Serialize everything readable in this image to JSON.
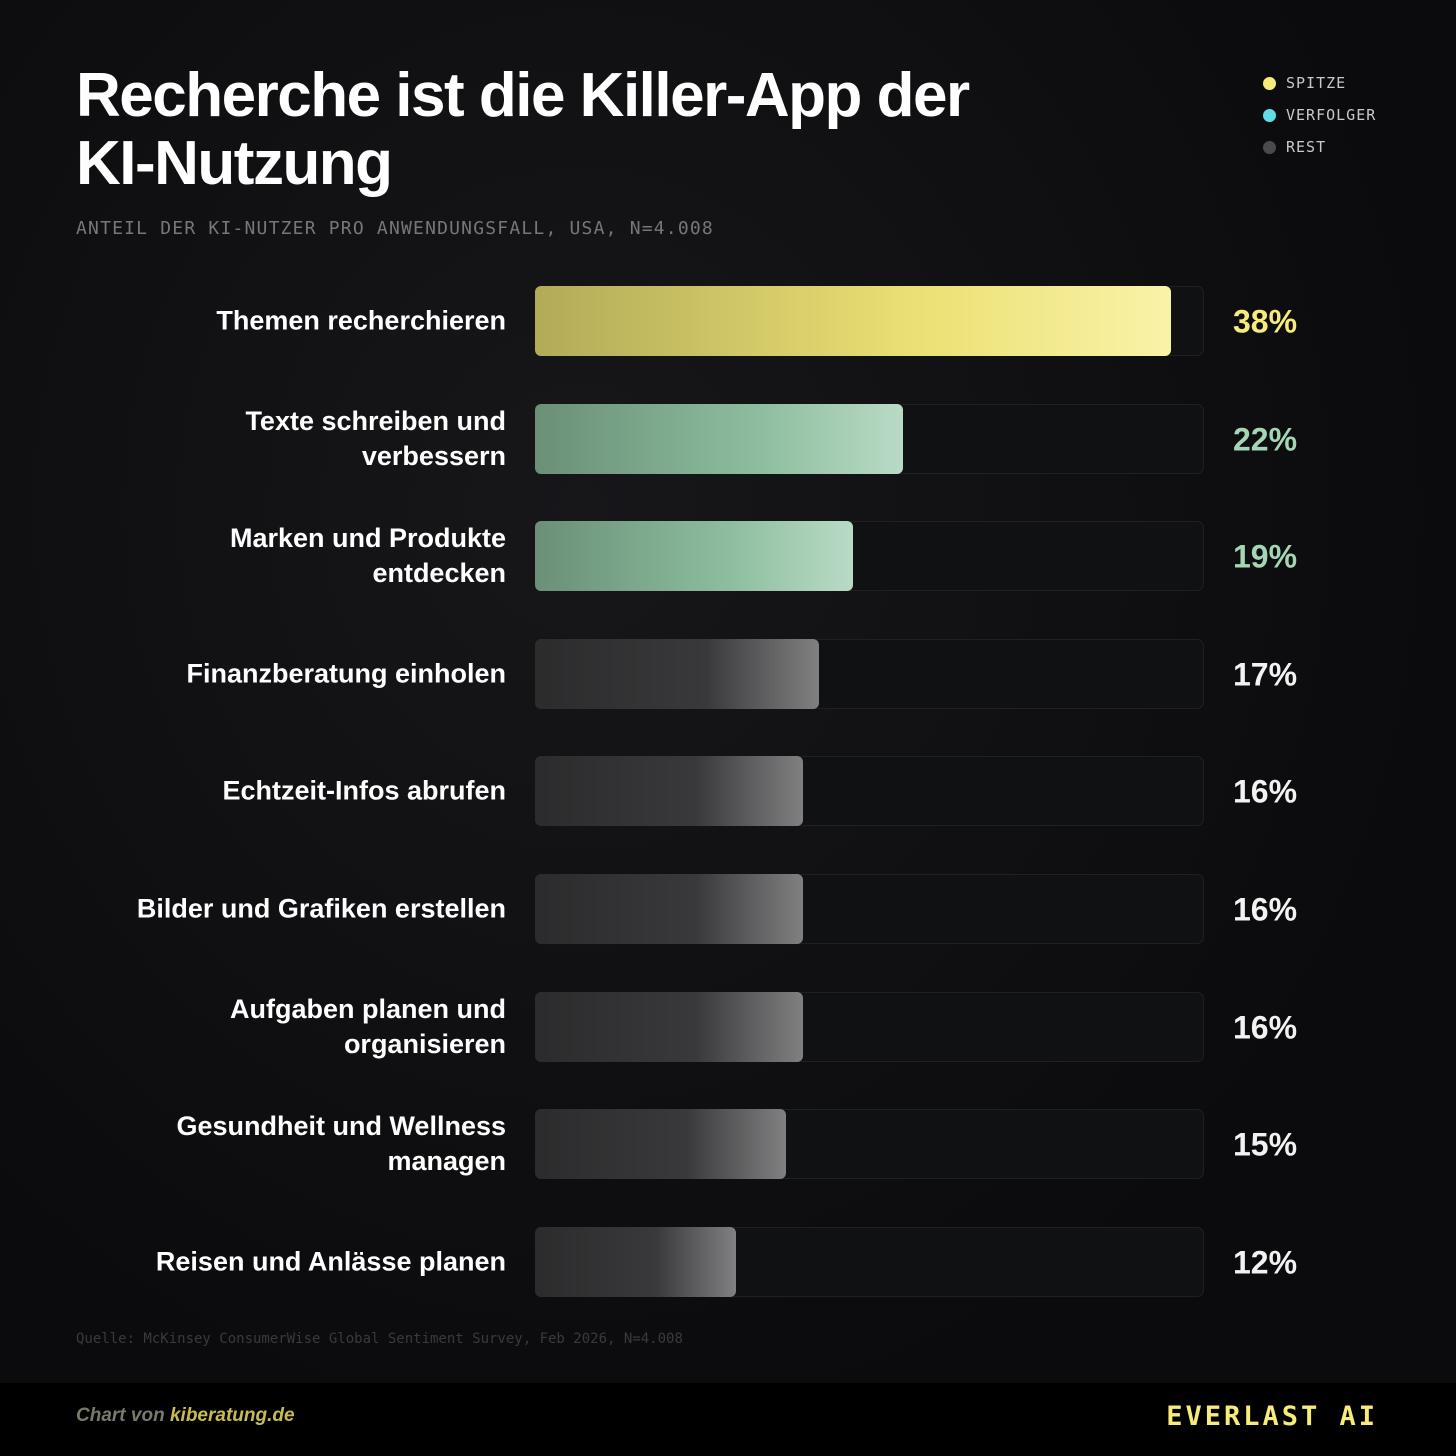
{
  "chart_data": {
    "type": "bar",
    "orientation": "horizontal",
    "title": "Recherche ist die Killer-App der KI-Nutzung",
    "subtitle": "ANTEIL DER KI-NUTZER PRO ANWENDUNGSFALL, USA, N=4.008",
    "categories": [
      "Themen recherchieren",
      "Texte schreiben und verbessern",
      "Marken und Produkte entdecken",
      "Finanzberatung einholen",
      "Echtzeit-Infos abrufen",
      "Bilder und Grafiken erstellen",
      "Aufgaben planen und organisieren",
      "Gesundheit und Wellness managen",
      "Reisen und Anlässe planen"
    ],
    "series": [
      {
        "name": "SPITZE",
        "color": "#f7ec7a",
        "legend_color": "#f7ec7a",
        "label_color": "#f7ec7a",
        "values": [
          38,
          null,
          null,
          null,
          null,
          null,
          null,
          null,
          null
        ],
        "value_labels": [
          "38%",
          null,
          null,
          null,
          null,
          null,
          null,
          null,
          null
        ]
      },
      {
        "name": "VERFOLGER",
        "color": "#93c7a6",
        "legend_color": "#5fdde6",
        "label_color": "#a3d6b4",
        "values": [
          null,
          22,
          19,
          null,
          null,
          null,
          null,
          null,
          null
        ],
        "value_labels": [
          null,
          "22%",
          "19%",
          null,
          null,
          null,
          null,
          null,
          null
        ]
      },
      {
        "name": "REST",
        "color": "#3c3c3e",
        "legend_color": "#4a4a4c",
        "label_color": "#f2f2f2",
        "values": [
          null,
          null,
          null,
          17,
          16,
          16,
          16,
          15,
          12
        ],
        "value_labels": [
          null,
          null,
          null,
          "17%",
          "16%",
          "16%",
          "16%",
          "15%",
          "12%"
        ]
      }
    ],
    "xlim": [
      0,
      40
    ],
    "legend_position": "top-right",
    "source": "Quelle: McKinsey ConsumerWise Global Sentiment Survey, Feb 2026, N=4.008"
  },
  "footer": {
    "credit_prefix": "Chart von",
    "credit_link": "kiberatung.de",
    "brand": "EVERLAST AI"
  }
}
